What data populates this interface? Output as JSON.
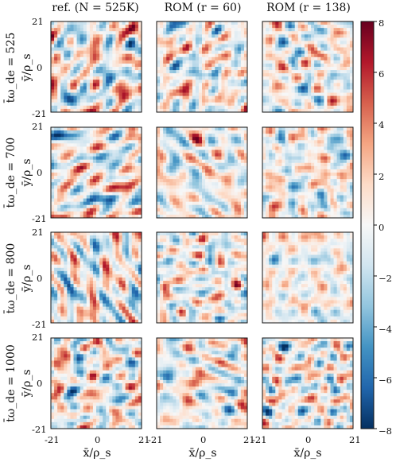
{
  "chart_data": {
    "type": "heatmap",
    "columns": [
      "ref. (N = 525K)",
      "ROM (r = 60)",
      "ROM (r = 138)"
    ],
    "rows": [
      "$\\bar{t}\\omega_{\\mathrm{de}} = 525$",
      "700",
      "800",
      "1000"
    ],
    "row_labels": [
      "t̄ω_de = 525",
      "t̄ω_de = 700",
      "t̄ω_de = 800",
      "t̄ω_de = 1000"
    ],
    "xlabel": "x̄/ρ_s",
    "ylabel": "ȳ/ρ_s",
    "xlim": [
      -21,
      21
    ],
    "ylim": [
      -21,
      21
    ],
    "x_ticks": [
      "-21",
      "0",
      "21"
    ],
    "y_ticks": [
      "21",
      "0",
      "-21"
    ],
    "colorbar": {
      "range": [
        -8,
        8
      ],
      "ticks": [
        "8",
        "6",
        "4",
        "2",
        "0",
        "−2",
        "−4",
        "−6",
        "−8"
      ],
      "colormap": "RdBu_r",
      "colors": [
        "#053061",
        "#2166ac",
        "#4393c3",
        "#92c5de",
        "#d1e5f0",
        "#f7f7f7",
        "#fddbc7",
        "#f4a582",
        "#d6604d",
        "#b2182b",
        "#67001f"
      ]
    }
  }
}
